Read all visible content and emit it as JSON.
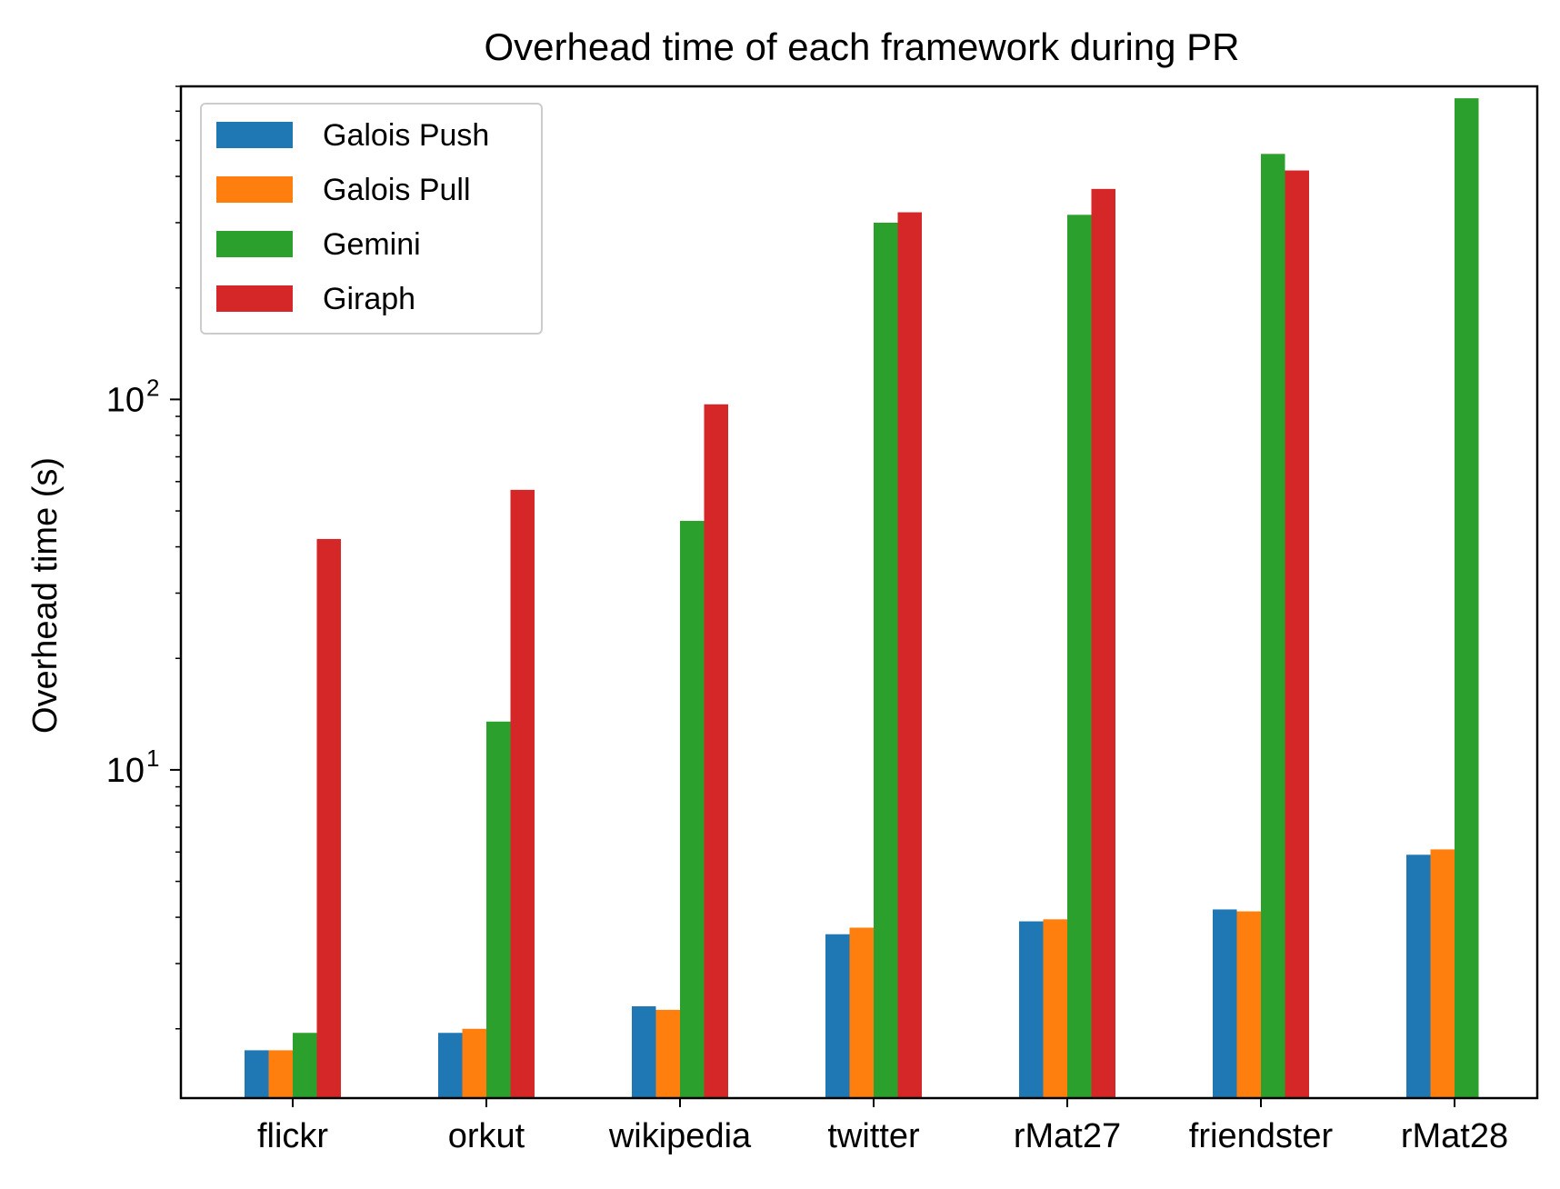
{
  "chart_data": {
    "type": "bar",
    "title": "Overhead time of each framework during PR",
    "xlabel": "",
    "ylabel": "Overhead time (s)",
    "yscale": "log",
    "ylim": [
      1.3,
      700
    ],
    "yticks": [
      {
        "value": 10,
        "base": "10",
        "exp": "1"
      },
      {
        "value": 100,
        "base": "10",
        "exp": "2"
      }
    ],
    "categories": [
      "flickr",
      "orkut",
      "wikipedia",
      "twitter",
      "rMat27",
      "friendster",
      "rMat28"
    ],
    "series": [
      {
        "name": "Galois Push",
        "color": "#1f77b4",
        "values": [
          1.75,
          1.95,
          2.3,
          3.6,
          3.9,
          4.2,
          5.9
        ]
      },
      {
        "name": "Galois Pull",
        "color": "#ff7f0e",
        "values": [
          1.75,
          2.0,
          2.25,
          3.75,
          3.95,
          4.15,
          6.1
        ]
      },
      {
        "name": "Gemini",
        "color": "#2ca02c",
        "values": [
          1.95,
          13.5,
          47,
          300,
          315,
          460,
          650
        ]
      },
      {
        "name": "Giraph",
        "color": "#d62728",
        "values": [
          42,
          57,
          97,
          320,
          370,
          415,
          null
        ]
      }
    ],
    "legend_position": "top-left",
    "grid": false
  }
}
